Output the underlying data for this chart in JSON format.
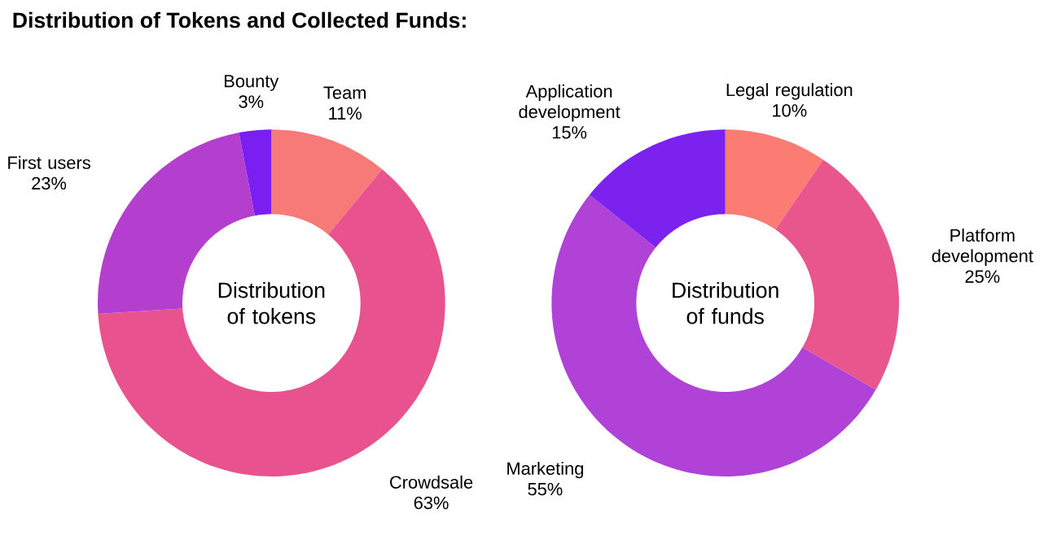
{
  "chart_data": [
    {
      "type": "donut",
      "title": "Distribution of tokens",
      "annotations": [
        "Distribution of Tokens and Collected Funds:"
      ],
      "categories": [
        "Team",
        "Crowdsale",
        "First users",
        "Bounty"
      ],
      "values": [
        11,
        63,
        23,
        3
      ],
      "value_labels": [
        "11%",
        "63%",
        "23%",
        "3%"
      ],
      "colors": [
        "#f87a78",
        "#e8528f",
        "#b43fcf",
        "#7a1ff0"
      ]
    },
    {
      "type": "donut",
      "title": "Distribution of funds",
      "categories": [
        "Legal regulation",
        "Platform development",
        "Marketing",
        "Application development"
      ],
      "values": [
        10,
        25,
        55,
        15
      ],
      "value_labels": [
        "10%",
        "25%",
        "55%",
        "15%"
      ],
      "colors": [
        "#fa7c72",
        "#e9568e",
        "#b042d8",
        "#7c22ee"
      ]
    }
  ]
}
